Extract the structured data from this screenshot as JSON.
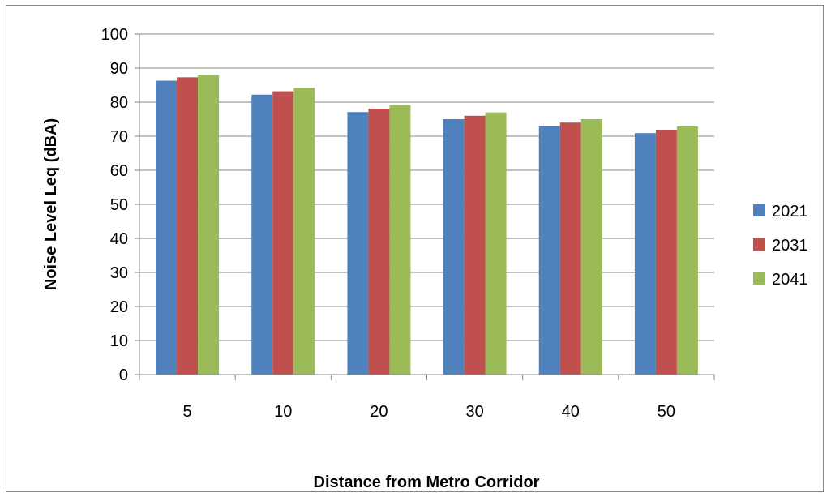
{
  "chart_data": {
    "type": "bar",
    "categories": [
      "5",
      "10",
      "20",
      "30",
      "40",
      "50"
    ],
    "series": [
      {
        "name": "2021",
        "color": "#4F81BD",
        "values": [
          86.3,
          82.2,
          77.1,
          75.0,
          73.0,
          70.9
        ]
      },
      {
        "name": "2031",
        "color": "#C0504D",
        "values": [
          87.3,
          83.2,
          78.1,
          76.0,
          74.0,
          71.9
        ]
      },
      {
        "name": "2041",
        "color": "#9BBB59",
        "values": [
          88.0,
          84.2,
          79.1,
          77.0,
          75.0,
          72.9
        ]
      }
    ],
    "xlabel": "Distance from Metro Corridor",
    "ylabel": "Noise Level Leq (dBA)",
    "ylim": [
      0,
      100
    ],
    "ytick_step": 10,
    "grid": true,
    "legend_position": "right"
  }
}
